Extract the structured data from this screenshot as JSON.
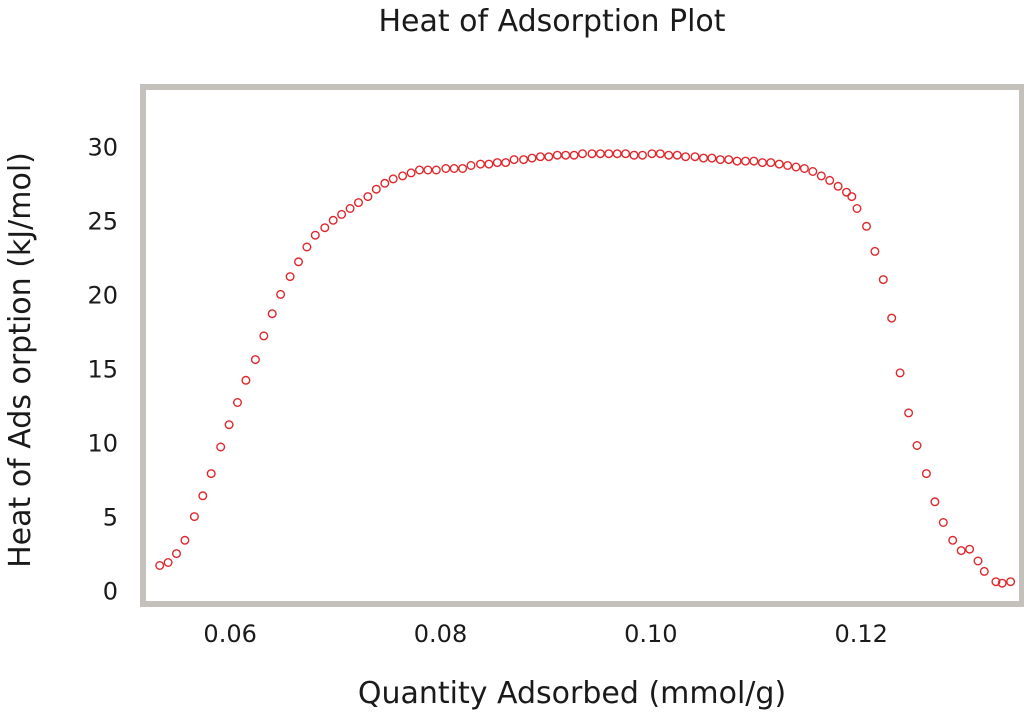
{
  "chart_data": {
    "type": "scatter",
    "title": "Heat of Adsorption Plot",
    "xlabel": "Quantity Adsorbed (mmol/g)",
    "ylabel": "Heat of Ads orption  (kJ/mol)",
    "xlim": [
      0.052,
      0.135
    ],
    "ylim": [
      -0.7,
      33.8
    ],
    "xticks": [
      "0.06",
      "0.08",
      "0.10",
      "0.12"
    ],
    "xtick_values": [
      0.06,
      0.08,
      0.1,
      0.12
    ],
    "yticks": [
      "0",
      "5",
      "10",
      "15",
      "20",
      "25",
      "30"
    ],
    "ytick_values": [
      0,
      5,
      10,
      15,
      20,
      25,
      30
    ],
    "grid": false,
    "marker": "open-circle",
    "marker_color": "#e0262b",
    "frame_color": "#c4c0bb",
    "series": [
      {
        "x": [
          0.0533,
          0.0541,
          0.0549,
          0.0557,
          0.0566,
          0.0574,
          0.0582,
          0.0591,
          0.0599,
          0.0607,
          0.0615,
          0.0624,
          0.0632,
          0.064,
          0.0648,
          0.0657,
          0.0665,
          0.0673,
          0.0681,
          0.069,
          0.0698,
          0.0706,
          0.0714,
          0.0722,
          0.0731,
          0.0739,
          0.0747,
          0.0755,
          0.0764,
          0.0772,
          0.078,
          0.0788,
          0.0796,
          0.0805,
          0.0813,
          0.0821,
          0.0829,
          0.0838,
          0.0846,
          0.0854,
          0.0862,
          0.087,
          0.0879,
          0.0887,
          0.0895,
          0.0903,
          0.0911,
          0.0919,
          0.0927,
          0.0935,
          0.0944,
          0.0952,
          0.096,
          0.0968,
          0.0976,
          0.0984,
          0.0992,
          0.1001,
          0.1009,
          0.1017,
          0.1025,
          0.1033,
          0.1042,
          0.105,
          0.1058,
          0.1066,
          0.1074,
          0.1082,
          0.109,
          0.1098,
          0.1106,
          0.1114,
          0.1122,
          0.113,
          0.1138,
          0.1146,
          0.1154,
          0.1162,
          0.117,
          0.1178,
          0.1186,
          0.1191,
          0.1196,
          0.1205,
          0.1213,
          0.1221,
          0.1229,
          0.1237,
          0.1245,
          0.1253,
          0.1262,
          0.127,
          0.1278,
          0.1287,
          0.1295,
          0.1303,
          0.1311,
          0.1317,
          0.1328,
          0.1334,
          0.1342
        ],
        "y": [
          1.7,
          1.9,
          2.5,
          3.4,
          5.0,
          6.4,
          7.9,
          9.7,
          11.2,
          12.7,
          14.2,
          15.6,
          17.2,
          18.7,
          20.0,
          21.2,
          22.2,
          23.2,
          24.0,
          24.5,
          25.0,
          25.4,
          25.8,
          26.2,
          26.6,
          27.1,
          27.5,
          27.8,
          28.0,
          28.2,
          28.4,
          28.4,
          28.4,
          28.5,
          28.5,
          28.5,
          28.7,
          28.8,
          28.8,
          28.9,
          28.9,
          29.1,
          29.1,
          29.2,
          29.3,
          29.3,
          29.4,
          29.4,
          29.4,
          29.5,
          29.5,
          29.5,
          29.5,
          29.5,
          29.5,
          29.4,
          29.4,
          29.5,
          29.5,
          29.4,
          29.4,
          29.3,
          29.3,
          29.2,
          29.2,
          29.1,
          29.1,
          29.0,
          29.0,
          29.0,
          28.9,
          28.9,
          28.8,
          28.7,
          28.6,
          28.5,
          28.3,
          28.0,
          27.7,
          27.3,
          26.9,
          26.6,
          25.8,
          24.6,
          22.9,
          21.0,
          18.4,
          14.7,
          12.0,
          9.8,
          7.9,
          6.0,
          4.6,
          3.4,
          2.7,
          2.8,
          2.0,
          1.3,
          0.6,
          0.5,
          0.6
        ]
      }
    ]
  }
}
